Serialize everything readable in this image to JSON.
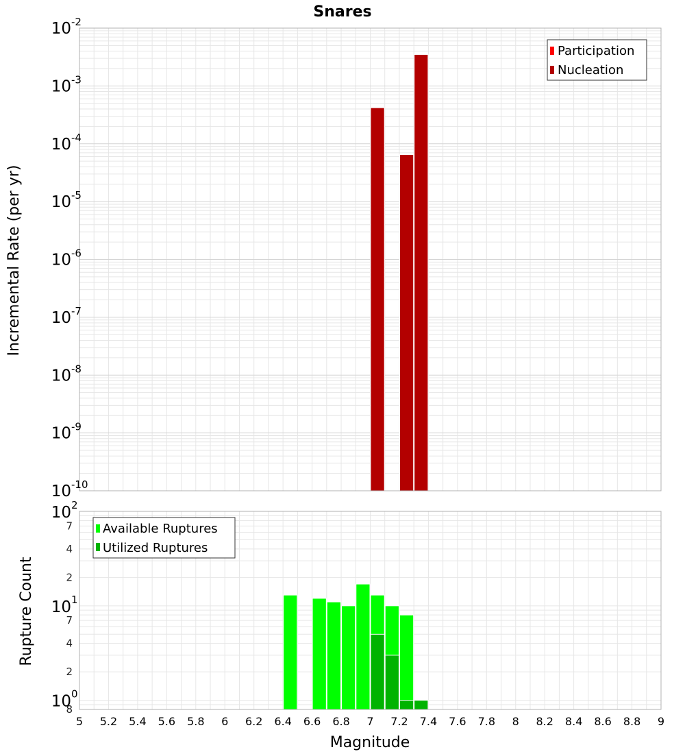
{
  "chart_data": [
    {
      "type": "bar",
      "title": "Snares",
      "xlabel": "",
      "ylabel": "Incremental Rate (per yr)",
      "xlim": [
        5,
        9
      ],
      "ylim": [
        1e-10,
        0.01
      ],
      "y_scale": "log",
      "grid": true,
      "legend_placement": "top-right",
      "bin_width": 0.1,
      "series": [
        {
          "name": "Participation",
          "color": "#ff0000",
          "x": [
            7.05,
            7.25,
            7.35
          ],
          "values": [
            0.00042,
            6.5e-05,
            0.0035
          ]
        },
        {
          "name": "Nucleation",
          "color": "#b30000",
          "x": [
            7.05,
            7.25,
            7.35
          ],
          "values": [
            0.00042,
            6.5e-05,
            0.0035
          ]
        }
      ]
    },
    {
      "type": "bar",
      "title": "",
      "xlabel": "Magnitude",
      "ylabel": "Rupture Count",
      "xlim": [
        5,
        9
      ],
      "ylim": [
        0.8,
        100
      ],
      "y_scale": "log",
      "grid": true,
      "legend_placement": "top-left",
      "bin_width": 0.1,
      "series": [
        {
          "name": "Available Ruptures",
          "color": "#00ff00",
          "x": [
            6.45,
            6.65,
            6.75,
            6.85,
            6.95,
            7.05,
            7.15,
            7.25
          ],
          "values": [
            13,
            12,
            11,
            10,
            17,
            13,
            10,
            8
          ]
        },
        {
          "name": "Utilized Ruptures",
          "color": "#00b300",
          "x": [
            7.05,
            7.15,
            7.25,
            7.35
          ],
          "values": [
            5,
            3,
            1,
            1
          ]
        }
      ]
    }
  ],
  "axes": {
    "x_ticks": [
      "5",
      "5.2",
      "5.4",
      "5.6",
      "5.8",
      "6",
      "6.2",
      "6.4",
      "6.6",
      "6.8",
      "7",
      "7.2",
      "7.4",
      "7.6",
      "7.8",
      "8",
      "8.2",
      "8.4",
      "8.6",
      "8.8",
      "9"
    ],
    "top_y_ticks": [
      {
        "base": "10",
        "exp": "-2"
      },
      {
        "base": "10",
        "exp": "-3"
      },
      {
        "base": "10",
        "exp": "-4"
      },
      {
        "base": "10",
        "exp": "-5"
      },
      {
        "base": "10",
        "exp": "-6"
      },
      {
        "base": "10",
        "exp": "-7"
      },
      {
        "base": "10",
        "exp": "-8"
      },
      {
        "base": "10",
        "exp": "-9"
      },
      {
        "base": "10",
        "exp": "-10"
      }
    ],
    "bottom_y_major": [
      {
        "base": "10",
        "exp": "2"
      },
      {
        "base": "10",
        "exp": "1"
      },
      {
        "base": "10",
        "exp": "0"
      }
    ],
    "bottom_y_minor": [
      "7",
      "4",
      "2",
      "7",
      "4",
      "2",
      "8"
    ]
  },
  "colors": {
    "grid": "#e6e6e6",
    "plot_border": "#b0b0b0",
    "bar_stroke": "#ffffff"
  }
}
